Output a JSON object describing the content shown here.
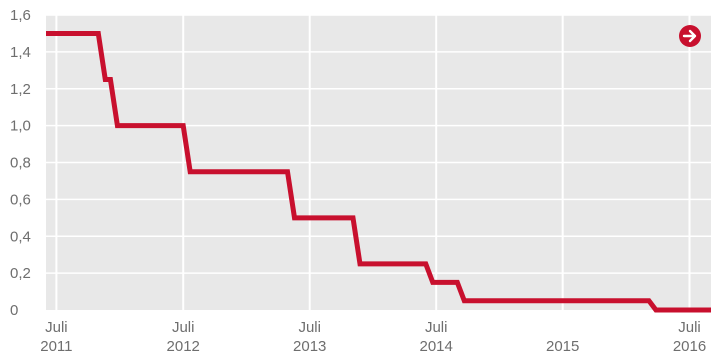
{
  "chart_data": {
    "type": "line",
    "step": true,
    "title": "",
    "xlabel": "",
    "ylabel": "",
    "ylim": [
      0,
      1.6
    ],
    "yticks": [
      "1,6",
      "1,4",
      "1,2",
      "1,0",
      "0,8",
      "0,6",
      "0,4",
      "0,2",
      "0"
    ],
    "ytick_values": [
      1.6,
      1.4,
      1.2,
      1.0,
      0.8,
      0.6,
      0.4,
      0.2,
      0
    ],
    "xlim": [
      "2011-06-01",
      "2016-09-01"
    ],
    "xticks": [
      {
        "month": "Juli",
        "year": "2011",
        "date": "2011-07-01"
      },
      {
        "month": "Juli",
        "year": "2012",
        "date": "2012-07-01"
      },
      {
        "month": "Juli",
        "year": "2013",
        "date": "2013-07-01"
      },
      {
        "month": "Juli",
        "year": "2014",
        "date": "2014-07-01"
      },
      {
        "month": "",
        "year": "2015",
        "date": "2015-07-01"
      },
      {
        "month": "Juli",
        "year": "2016",
        "date": "2016-07-01"
      }
    ],
    "grid": true,
    "background_color": "#e8e8e8",
    "line_color": "#c8102e",
    "series": [
      {
        "values": [
          {
            "x": "2011-06-01",
            "y": 1.5
          },
          {
            "x": "2011-11-09",
            "y": 1.25
          },
          {
            "x": "2011-12-14",
            "y": 1.0
          },
          {
            "x": "2012-07-11",
            "y": 0.75
          },
          {
            "x": "2013-05-08",
            "y": 0.5
          },
          {
            "x": "2013-11-13",
            "y": 0.25
          },
          {
            "x": "2014-06-11",
            "y": 0.15
          },
          {
            "x": "2014-09-10",
            "y": 0.05
          },
          {
            "x": "2016-03-16",
            "y": 0.0
          },
          {
            "x": "2016-09-01",
            "y": 0.0
          }
        ]
      }
    ]
  },
  "controls": {
    "next_icon": "arrow-right-circle-icon",
    "next_icon_color": "#c8102e"
  }
}
